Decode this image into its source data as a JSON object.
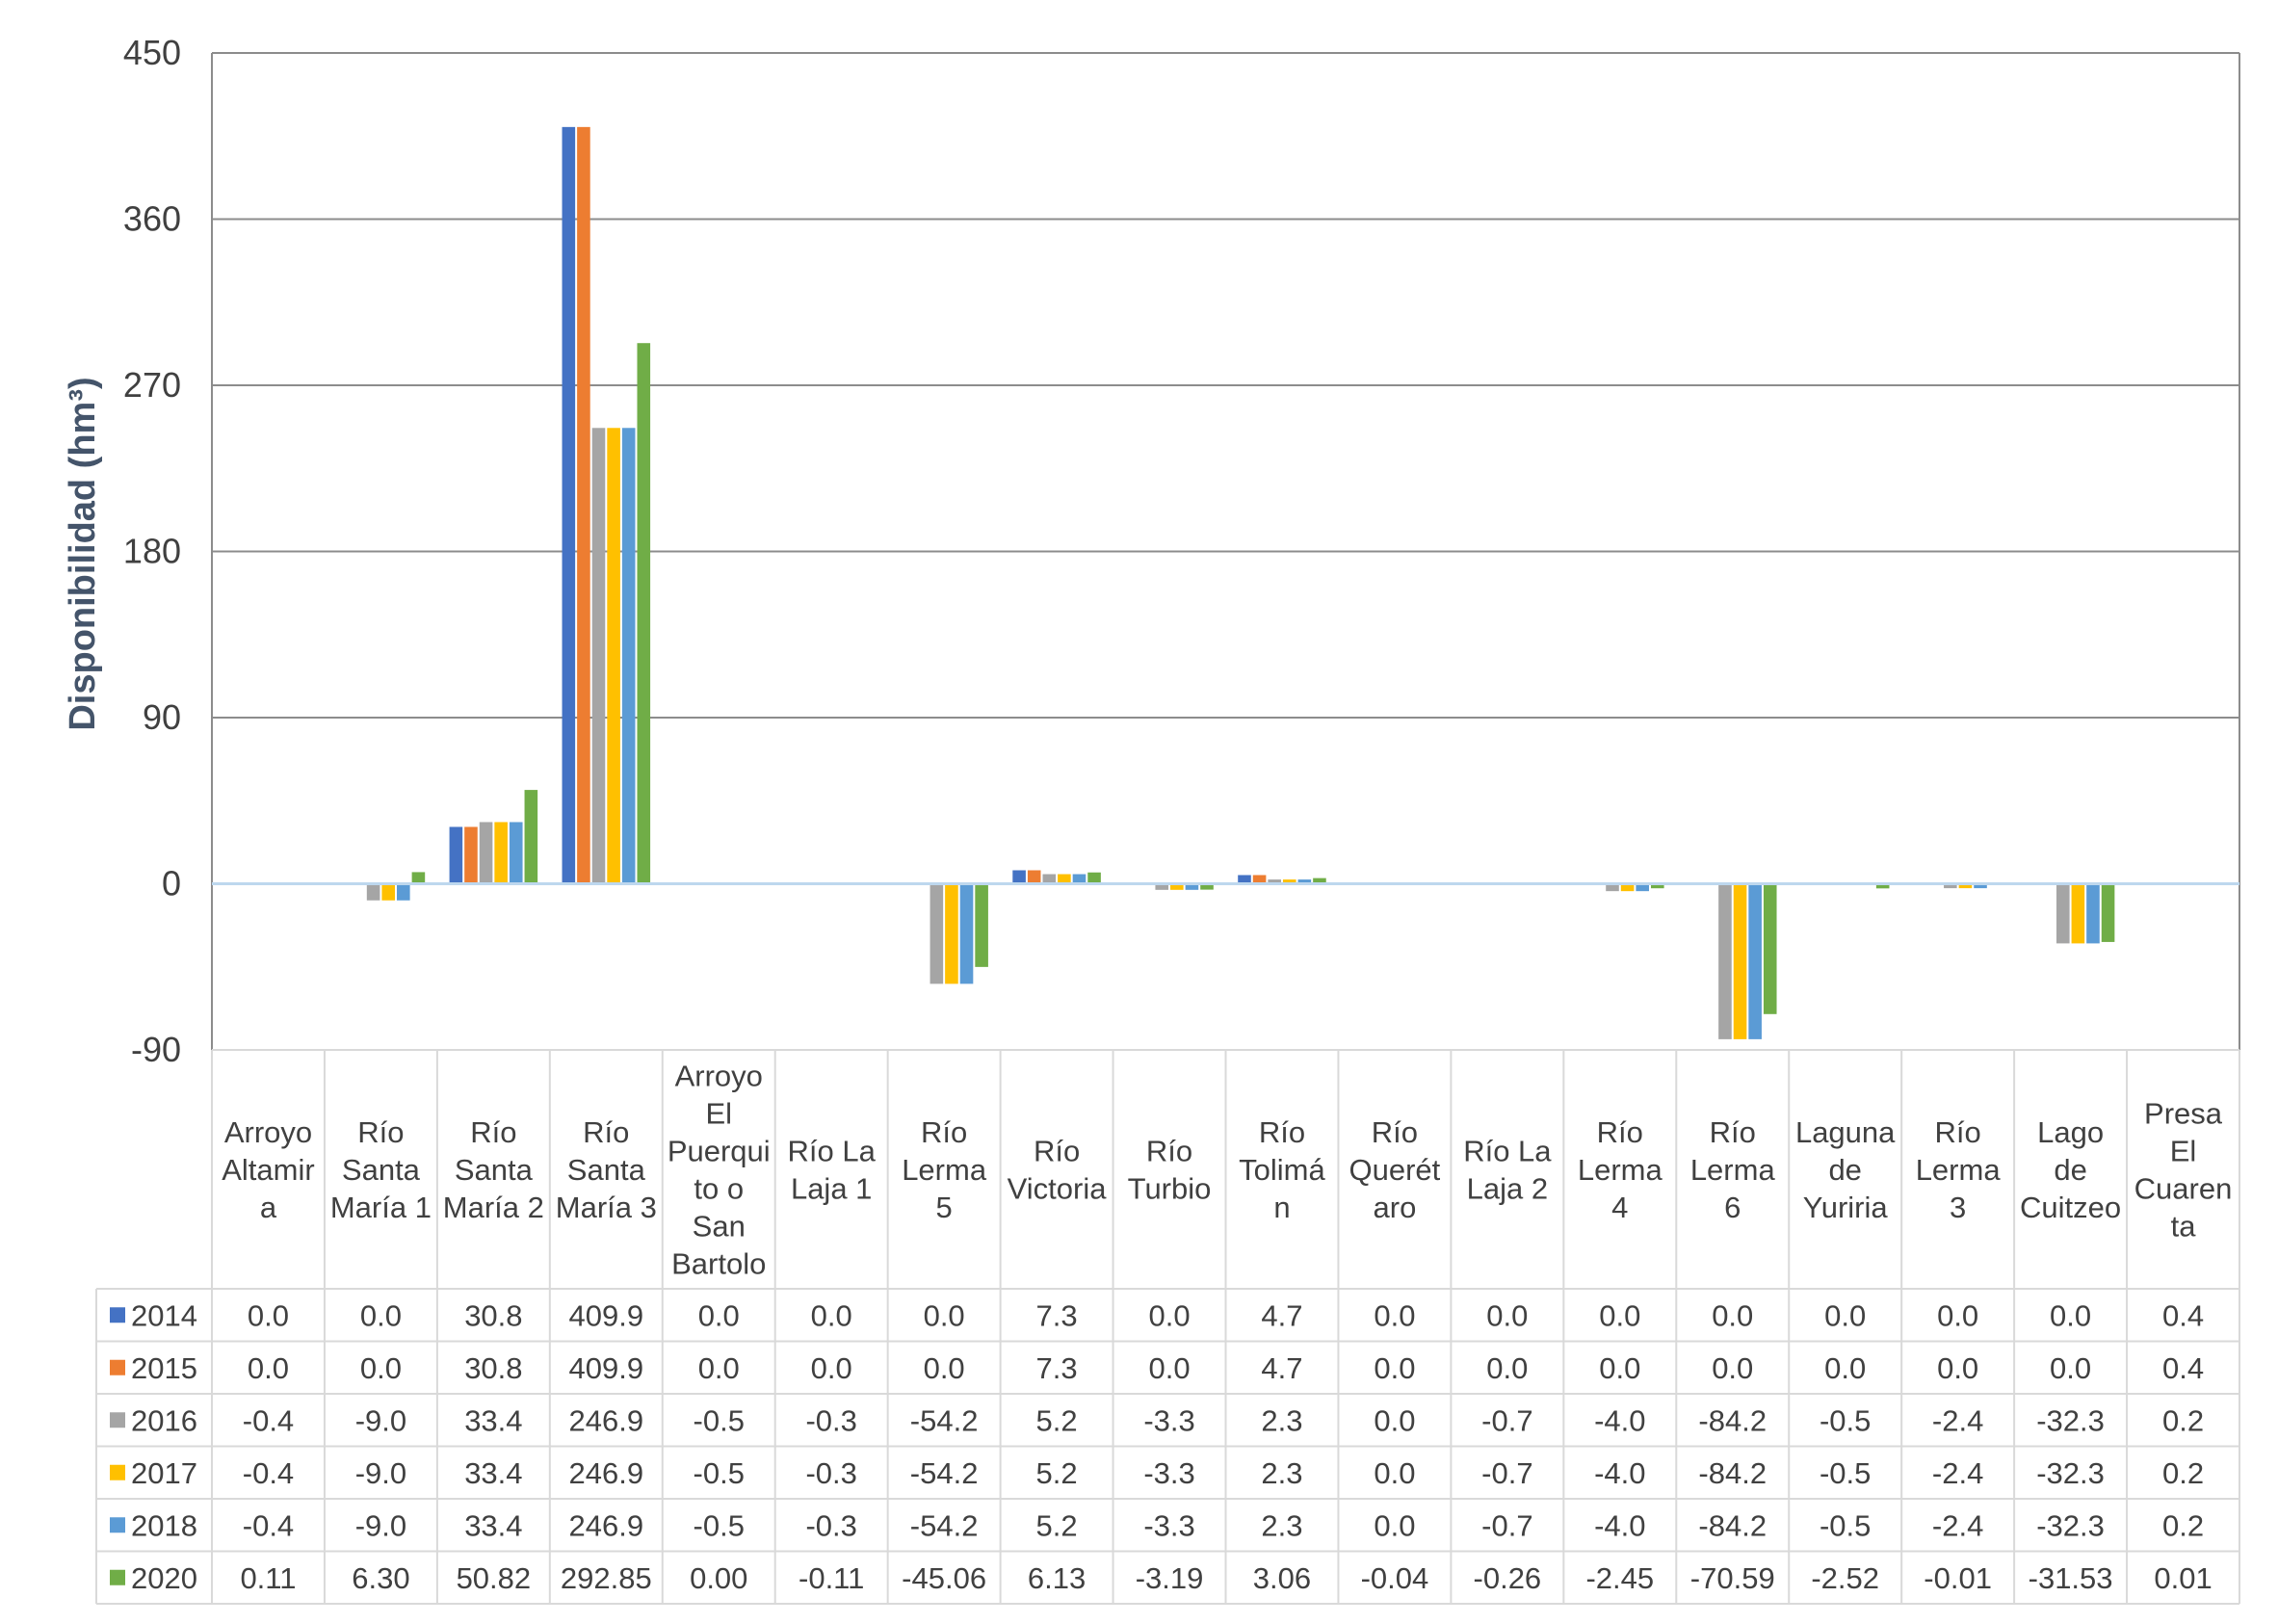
{
  "chart_data": {
    "type": "bar",
    "ylabel": "Disponibilidad (hm³)",
    "ylim": [
      -90,
      450
    ],
    "yticks": [
      "-90",
      "0",
      "90",
      "180",
      "270",
      "360",
      "450"
    ],
    "grid": true,
    "legend": "data-table",
    "categories": [
      [
        "Arroyo",
        "Altamir",
        "a"
      ],
      [
        "Río",
        "Santa",
        "María 1"
      ],
      [
        "Río",
        "Santa",
        "María 2"
      ],
      [
        "Río",
        "Santa",
        "María 3"
      ],
      [
        "Arroyo",
        "El",
        "Puerqui",
        "to o",
        "San",
        "Bartolo"
      ],
      [
        "Río La",
        "Laja 1"
      ],
      [
        "Río",
        "Lerma",
        "5"
      ],
      [
        "Río",
        "Victoria"
      ],
      [
        "Río",
        "Turbio"
      ],
      [
        "Río",
        "Tolimá",
        "n"
      ],
      [
        "Río",
        "Querét",
        "aro"
      ],
      [
        "Río La",
        "Laja 2"
      ],
      [
        "Río",
        "Lerma",
        "4"
      ],
      [
        "Río",
        "Lerma",
        "6"
      ],
      [
        "Laguna",
        "de",
        "Yuriria"
      ],
      [
        "Río",
        "Lerma",
        "3"
      ],
      [
        "Lago",
        "de",
        "Cuitzeo"
      ],
      [
        "Presa",
        "El",
        "Cuaren",
        "ta"
      ]
    ],
    "series": [
      {
        "name": "2014",
        "color": "#4472c4",
        "values": [
          0.0,
          0.0,
          30.8,
          409.9,
          0.0,
          0.0,
          0.0,
          7.3,
          0.0,
          4.7,
          0.0,
          0.0,
          0.0,
          0.0,
          0.0,
          0.0,
          0.0,
          0.4
        ],
        "labels": [
          "0.0",
          "0.0",
          "30.8",
          "409.9",
          "0.0",
          "0.0",
          "0.0",
          "7.3",
          "0.0",
          "4.7",
          "0.0",
          "0.0",
          "0.0",
          "0.0",
          "0.0",
          "0.0",
          "0.0",
          "0.4"
        ]
      },
      {
        "name": "2015",
        "color": "#ed7d31",
        "values": [
          0.0,
          0.0,
          30.8,
          409.9,
          0.0,
          0.0,
          0.0,
          7.3,
          0.0,
          4.7,
          0.0,
          0.0,
          0.0,
          0.0,
          0.0,
          0.0,
          0.0,
          0.4
        ],
        "labels": [
          "0.0",
          "0.0",
          "30.8",
          "409.9",
          "0.0",
          "0.0",
          "0.0",
          "7.3",
          "0.0",
          "4.7",
          "0.0",
          "0.0",
          "0.0",
          "0.0",
          "0.0",
          "0.0",
          "0.0",
          "0.4"
        ]
      },
      {
        "name": "2016",
        "color": "#a5a5a5",
        "values": [
          -0.4,
          -9.0,
          33.4,
          246.9,
          -0.5,
          -0.3,
          -54.2,
          5.2,
          -3.3,
          2.3,
          0.0,
          -0.7,
          -4.0,
          -84.2,
          -0.5,
          -2.4,
          -32.3,
          0.2
        ],
        "labels": [
          "-0.4",
          "-9.0",
          "33.4",
          "246.9",
          "-0.5",
          "-0.3",
          "-54.2",
          "5.2",
          "-3.3",
          "2.3",
          "0.0",
          "-0.7",
          "-4.0",
          "-84.2",
          "-0.5",
          "-2.4",
          "-32.3",
          "0.2"
        ]
      },
      {
        "name": "2017",
        "color": "#ffc000",
        "values": [
          -0.4,
          -9.0,
          33.4,
          246.9,
          -0.5,
          -0.3,
          -54.2,
          5.2,
          -3.3,
          2.3,
          0.0,
          -0.7,
          -4.0,
          -84.2,
          -0.5,
          -2.4,
          -32.3,
          0.2
        ],
        "labels": [
          "-0.4",
          "-9.0",
          "33.4",
          "246.9",
          "-0.5",
          "-0.3",
          "-54.2",
          "5.2",
          "-3.3",
          "2.3",
          "0.0",
          "-0.7",
          "-4.0",
          "-84.2",
          "-0.5",
          "-2.4",
          "-32.3",
          "0.2"
        ]
      },
      {
        "name": "2018",
        "color": "#5b9bd5",
        "values": [
          -0.4,
          -9.0,
          33.4,
          246.9,
          -0.5,
          -0.3,
          -54.2,
          5.2,
          -3.3,
          2.3,
          0.0,
          -0.7,
          -4.0,
          -84.2,
          -0.5,
          -2.4,
          -32.3,
          0.2
        ],
        "labels": [
          "-0.4",
          "-9.0",
          "33.4",
          "246.9",
          "-0.5",
          "-0.3",
          "-54.2",
          "5.2",
          "-3.3",
          "2.3",
          "0.0",
          "-0.7",
          "-4.0",
          "-84.2",
          "-0.5",
          "-2.4",
          "-32.3",
          "0.2"
        ]
      },
      {
        "name": "2020",
        "color": "#70ad47",
        "values": [
          0.11,
          6.3,
          50.82,
          292.85,
          0.0,
          -0.11,
          -45.06,
          6.13,
          -3.19,
          3.06,
          -0.04,
          -0.26,
          -2.45,
          -70.59,
          -2.52,
          -0.01,
          -31.53,
          0.01
        ],
        "labels": [
          "0.11",
          "6.30",
          "50.82",
          "292.85",
          "0.00",
          "-0.11",
          "-45.06",
          "6.13",
          "-3.19",
          "3.06",
          "-0.04",
          "-0.26",
          "-2.45",
          "-70.59",
          "-2.52",
          "-0.01",
          "-31.53",
          "0.01"
        ]
      }
    ]
  }
}
